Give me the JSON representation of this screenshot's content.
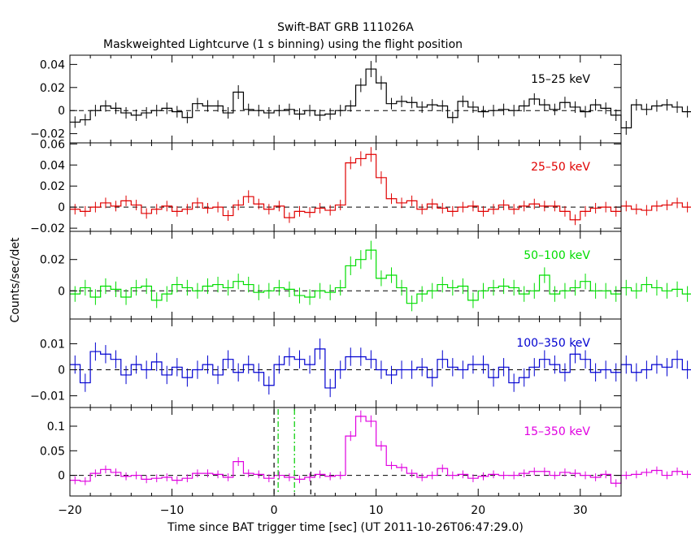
{
  "title": "Swift-BAT GRB 111026A",
  "subtitle": "Maskweighted Lightcurve (1 s binning) using the flight position",
  "xlabel": "Time since BAT trigger time [sec] (UT 2011-10-26T06:47:29.0)",
  "ylabel": "Counts/sec/det",
  "chart_data": {
    "type": "line",
    "title": "Swift-BAT GRB 111026A",
    "subtitle": "Maskweighted Lightcurve (1 s binning) using the flight position",
    "xlabel": "Time since BAT trigger time [sec] (UT 2011-10-26T06:47:29.0)",
    "ylabel": "Counts/sec/det",
    "xlim": [
      -20,
      34
    ],
    "x_ticks": [
      -20,
      -10,
      0,
      10,
      20,
      30
    ],
    "x_tick_labels": [
      "−20",
      "−10",
      "0",
      "10",
      "20",
      "30"
    ],
    "bin_start": -20,
    "bin_width": 1,
    "grid": false,
    "panels": [
      {
        "band": "15–25 keV",
        "color": "#000000",
        "ylim": [
          -0.028,
          0.048
        ],
        "y_ticks": [
          -0.02,
          0,
          0.02,
          0.04
        ],
        "y_tick_labels": [
          "−0.02",
          "0",
          "0.02",
          "0.04"
        ],
        "values": [
          -0.01,
          -0.008,
          0.0,
          0.004,
          0.002,
          -0.002,
          -0.004,
          -0.002,
          0.0,
          0.002,
          -0.001,
          -0.006,
          0.006,
          0.004,
          0.004,
          -0.002,
          0.016,
          0.001,
          0.0,
          -0.002,
          0.0,
          0.001,
          -0.003,
          0.0,
          -0.004,
          -0.003,
          0.0,
          0.004,
          0.022,
          0.036,
          0.024,
          0.006,
          0.008,
          0.007,
          0.003,
          0.005,
          0.004,
          -0.006,
          0.008,
          0.003,
          -0.001,
          0.0,
          0.001,
          0.0,
          0.004,
          0.01,
          0.005,
          0.001,
          0.007,
          0.003,
          -0.001,
          0.005,
          0.002,
          -0.004,
          -0.015,
          0.005,
          0.001,
          0.004,
          0.005,
          0.003,
          -0.001,
          0.004,
          0.002,
          0.003,
          0.005,
          0.013,
          0.005,
          0.003,
          0.0,
          0.003,
          0.008,
          0.001,
          -0.001
        ],
        "errors": [
          0.005,
          0.005,
          0.005,
          0.005,
          0.005,
          0.005,
          0.005,
          0.005,
          0.005,
          0.005,
          0.005,
          0.005,
          0.005,
          0.005,
          0.005,
          0.005,
          0.006,
          0.005,
          0.005,
          0.005,
          0.005,
          0.005,
          0.005,
          0.005,
          0.005,
          0.005,
          0.005,
          0.005,
          0.006,
          0.007,
          0.006,
          0.005,
          0.005,
          0.005,
          0.005,
          0.005,
          0.005,
          0.005,
          0.005,
          0.005,
          0.005,
          0.005,
          0.005,
          0.005,
          0.005,
          0.005,
          0.005,
          0.005,
          0.005,
          0.005,
          0.005,
          0.005,
          0.005,
          0.005,
          0.006,
          0.005,
          0.005,
          0.005,
          0.005,
          0.005,
          0.005,
          0.005,
          0.005,
          0.005,
          0.005,
          0.005,
          0.005,
          0.005,
          0.005,
          0.005,
          0.005,
          0.005,
          0.005
        ]
      },
      {
        "band": "25–50 keV",
        "color": "#e00000",
        "ylim": [
          -0.023,
          0.061
        ],
        "y_ticks": [
          -0.02,
          0,
          0.02,
          0.04,
          0.06
        ],
        "y_tick_labels": [
          "−0.02",
          "0",
          "0.02",
          "0.04",
          "0.06"
        ],
        "values": [
          -0.002,
          -0.004,
          0.0,
          0.004,
          0.001,
          0.006,
          0.002,
          -0.006,
          -0.002,
          0.001,
          -0.004,
          -0.002,
          0.004,
          -0.001,
          0.0,
          -0.008,
          0.002,
          0.01,
          0.003,
          -0.002,
          0.001,
          -0.01,
          -0.004,
          -0.005,
          -0.001,
          -0.003,
          0.002,
          0.042,
          0.046,
          0.05,
          0.028,
          0.008,
          0.004,
          0.006,
          -0.002,
          0.003,
          -0.001,
          -0.004,
          0.0,
          0.001,
          -0.004,
          -0.002,
          0.002,
          -0.002,
          0.001,
          0.003,
          0.001,
          0.001,
          -0.004,
          -0.012,
          -0.004,
          -0.001,
          0.0,
          -0.004,
          0.001,
          -0.002,
          -0.003,
          0.001,
          0.002,
          0.004,
          0.0,
          0.001,
          0.004,
          0.006,
          0.0,
          0.003,
          -0.006,
          0.004,
          -0.001,
          0.001,
          0.01,
          -0.011,
          0.004
        ],
        "errors": [
          0.005,
          0.005,
          0.005,
          0.005,
          0.005,
          0.005,
          0.005,
          0.005,
          0.005,
          0.005,
          0.005,
          0.005,
          0.005,
          0.005,
          0.005,
          0.005,
          0.005,
          0.006,
          0.005,
          0.005,
          0.005,
          0.005,
          0.005,
          0.005,
          0.005,
          0.005,
          0.005,
          0.006,
          0.007,
          0.007,
          0.006,
          0.005,
          0.005,
          0.005,
          0.005,
          0.005,
          0.005,
          0.005,
          0.005,
          0.005,
          0.005,
          0.005,
          0.005,
          0.005,
          0.005,
          0.005,
          0.005,
          0.005,
          0.005,
          0.005,
          0.005,
          0.005,
          0.005,
          0.005,
          0.005,
          0.005,
          0.005,
          0.005,
          0.005,
          0.005,
          0.005,
          0.005,
          0.005,
          0.005,
          0.005,
          0.005,
          0.005,
          0.005,
          0.005,
          0.005,
          0.006,
          0.005,
          0.005
        ]
      },
      {
        "band": "50–100 keV",
        "color": "#00dd00",
        "ylim": [
          -0.018,
          0.038
        ],
        "y_ticks": [
          0,
          0.02
        ],
        "y_tick_labels": [
          "0",
          "0.02"
        ],
        "values": [
          -0.002,
          0.002,
          -0.004,
          0.003,
          0.001,
          -0.004,
          0.002,
          0.003,
          -0.006,
          -0.002,
          0.004,
          0.002,
          0.0,
          0.003,
          0.004,
          0.002,
          0.006,
          0.004,
          -0.001,
          0.0,
          0.002,
          0.001,
          -0.003,
          -0.004,
          0.0,
          -0.001,
          0.002,
          0.016,
          0.02,
          0.026,
          0.008,
          0.01,
          0.002,
          -0.008,
          -0.002,
          0.0,
          0.004,
          0.002,
          0.003,
          -0.006,
          0.0,
          0.002,
          0.003,
          0.002,
          -0.002,
          0.0,
          0.01,
          -0.002,
          0.0,
          0.002,
          0.006,
          0.0,
          0.0,
          -0.002,
          0.002,
          0.0,
          0.004,
          0.002,
          0.0,
          0.001,
          -0.002,
          0.004,
          0.003,
          -0.002,
          0.006,
          0.002,
          0.001,
          0.0,
          0.002,
          -0.002,
          0.002,
          -0.006,
          0.004
        ],
        "errors": [
          0.005,
          0.005,
          0.005,
          0.005,
          0.005,
          0.005,
          0.005,
          0.005,
          0.005,
          0.005,
          0.005,
          0.005,
          0.005,
          0.005,
          0.005,
          0.005,
          0.005,
          0.005,
          0.005,
          0.005,
          0.005,
          0.005,
          0.005,
          0.005,
          0.005,
          0.005,
          0.005,
          0.006,
          0.006,
          0.006,
          0.005,
          0.005,
          0.005,
          0.005,
          0.005,
          0.005,
          0.005,
          0.005,
          0.005,
          0.005,
          0.005,
          0.005,
          0.005,
          0.005,
          0.005,
          0.005,
          0.005,
          0.005,
          0.005,
          0.005,
          0.005,
          0.005,
          0.005,
          0.005,
          0.005,
          0.005,
          0.005,
          0.005,
          0.005,
          0.005,
          0.005,
          0.005,
          0.005,
          0.005,
          0.005,
          0.005,
          0.005,
          0.005,
          0.005,
          0.005,
          0.005,
          0.005,
          0.005
        ]
      },
      {
        "band": "100–350 keV",
        "color": "#0000d0",
        "ylim": [
          -0.0145,
          0.0195
        ],
        "y_ticks": [
          -0.01,
          0,
          0.01
        ],
        "y_tick_labels": [
          "−0.01",
          "0",
          "0.01"
        ],
        "values": [
          0.002,
          -0.005,
          0.007,
          0.006,
          0.004,
          -0.002,
          0.002,
          0.0,
          0.003,
          -0.002,
          0.001,
          -0.003,
          0.0,
          0.002,
          -0.002,
          0.004,
          -0.001,
          0.002,
          -0.001,
          -0.006,
          0.002,
          0.005,
          0.004,
          0.002,
          0.008,
          -0.007,
          0.0,
          0.005,
          0.005,
          0.004,
          0.0,
          -0.002,
          0.0,
          0.0,
          0.001,
          -0.003,
          0.004,
          0.001,
          0.0,
          0.002,
          0.002,
          -0.003,
          0.001,
          -0.005,
          -0.003,
          0.001,
          0.004,
          0.002,
          -0.001,
          0.006,
          0.004,
          -0.001,
          0.0,
          -0.001,
          0.002,
          -0.001,
          0.0,
          0.002,
          0.001,
          0.004,
          0.0,
          0.002,
          0.006,
          0.003,
          -0.003,
          0.0,
          0.002,
          0.001,
          0.004,
          -0.005,
          0.004,
          -0.002,
          0.002
        ],
        "errors": [
          0.0035,
          0.0035,
          0.0035,
          0.0035,
          0.0035,
          0.0035,
          0.0035,
          0.0035,
          0.0035,
          0.0035,
          0.0035,
          0.0035,
          0.0035,
          0.0035,
          0.0035,
          0.0035,
          0.0035,
          0.0035,
          0.0035,
          0.0035,
          0.0035,
          0.0035,
          0.0035,
          0.0035,
          0.004,
          0.0035,
          0.0035,
          0.0035,
          0.0035,
          0.0035,
          0.0035,
          0.0035,
          0.0035,
          0.0035,
          0.0035,
          0.0035,
          0.0035,
          0.0035,
          0.0035,
          0.0035,
          0.0035,
          0.0035,
          0.0035,
          0.0035,
          0.0035,
          0.0035,
          0.0035,
          0.0035,
          0.0035,
          0.0035,
          0.0035,
          0.0035,
          0.0035,
          0.0035,
          0.0035,
          0.0035,
          0.0035,
          0.0035,
          0.0035,
          0.0035,
          0.0035,
          0.0035,
          0.0035,
          0.0035,
          0.0035,
          0.0035,
          0.0035,
          0.0035,
          0.0035,
          0.0035,
          0.0035,
          0.0035,
          0.0035
        ]
      },
      {
        "band": "15–350 keV",
        "color": "#e000e0",
        "ylim": [
          -0.042,
          0.138
        ],
        "y_ticks": [
          0,
          0.05,
          0.1
        ],
        "y_tick_labels": [
          "0",
          "0.05",
          "0.1"
        ],
        "values": [
          -0.01,
          -0.012,
          0.004,
          0.012,
          0.006,
          -0.002,
          0.0,
          -0.008,
          -0.006,
          -0.004,
          -0.01,
          -0.006,
          0.004,
          0.004,
          0.002,
          -0.004,
          0.028,
          0.004,
          0.002,
          -0.006,
          0.0,
          -0.004,
          -0.008,
          -0.004,
          0.002,
          -0.002,
          0.0,
          0.08,
          0.12,
          0.11,
          0.06,
          0.02,
          0.016,
          0.004,
          -0.004,
          0.0,
          0.014,
          0.0,
          0.002,
          -0.006,
          -0.002,
          0.002,
          0.0,
          0.0,
          0.004,
          0.008,
          0.008,
          0.0,
          0.006,
          0.004,
          0.0,
          -0.004,
          0.002,
          -0.016,
          0.0,
          0.002,
          0.006,
          0.01,
          0.0,
          0.008,
          0.002,
          0.004,
          0.006,
          0.012,
          0.006,
          0.002,
          0.008,
          0.0,
          0.012,
          0.004,
          0.01,
          0.004,
          0.0
        ],
        "errors": [
          0.008,
          0.008,
          0.008,
          0.008,
          0.008,
          0.008,
          0.008,
          0.008,
          0.008,
          0.008,
          0.008,
          0.008,
          0.008,
          0.008,
          0.008,
          0.008,
          0.009,
          0.008,
          0.008,
          0.008,
          0.008,
          0.008,
          0.008,
          0.008,
          0.008,
          0.008,
          0.008,
          0.01,
          0.012,
          0.012,
          0.01,
          0.008,
          0.008,
          0.008,
          0.008,
          0.008,
          0.008,
          0.008,
          0.008,
          0.008,
          0.008,
          0.008,
          0.008,
          0.008,
          0.008,
          0.008,
          0.008,
          0.008,
          0.008,
          0.008,
          0.008,
          0.008,
          0.008,
          0.008,
          0.008,
          0.008,
          0.008,
          0.008,
          0.008,
          0.008,
          0.008,
          0.008,
          0.008,
          0.008,
          0.008,
          0.008,
          0.008,
          0.008,
          0.008,
          0.008,
          0.008,
          0.008,
          0.008
        ]
      }
    ],
    "reference_lines": [
      {
        "x": 0.0,
        "color": "#000000",
        "style": "dashed",
        "panel": "15–350 keV"
      },
      {
        "x": 3.6,
        "color": "#000000",
        "style": "dashed",
        "panel": "15–350 keV"
      },
      {
        "x": 0.4,
        "color": "#00cc00",
        "style": "dashdot",
        "panel": "15–350 keV"
      },
      {
        "x": 2.0,
        "color": "#00cc00",
        "style": "dashdot",
        "panel": "15–350 keV"
      }
    ]
  }
}
